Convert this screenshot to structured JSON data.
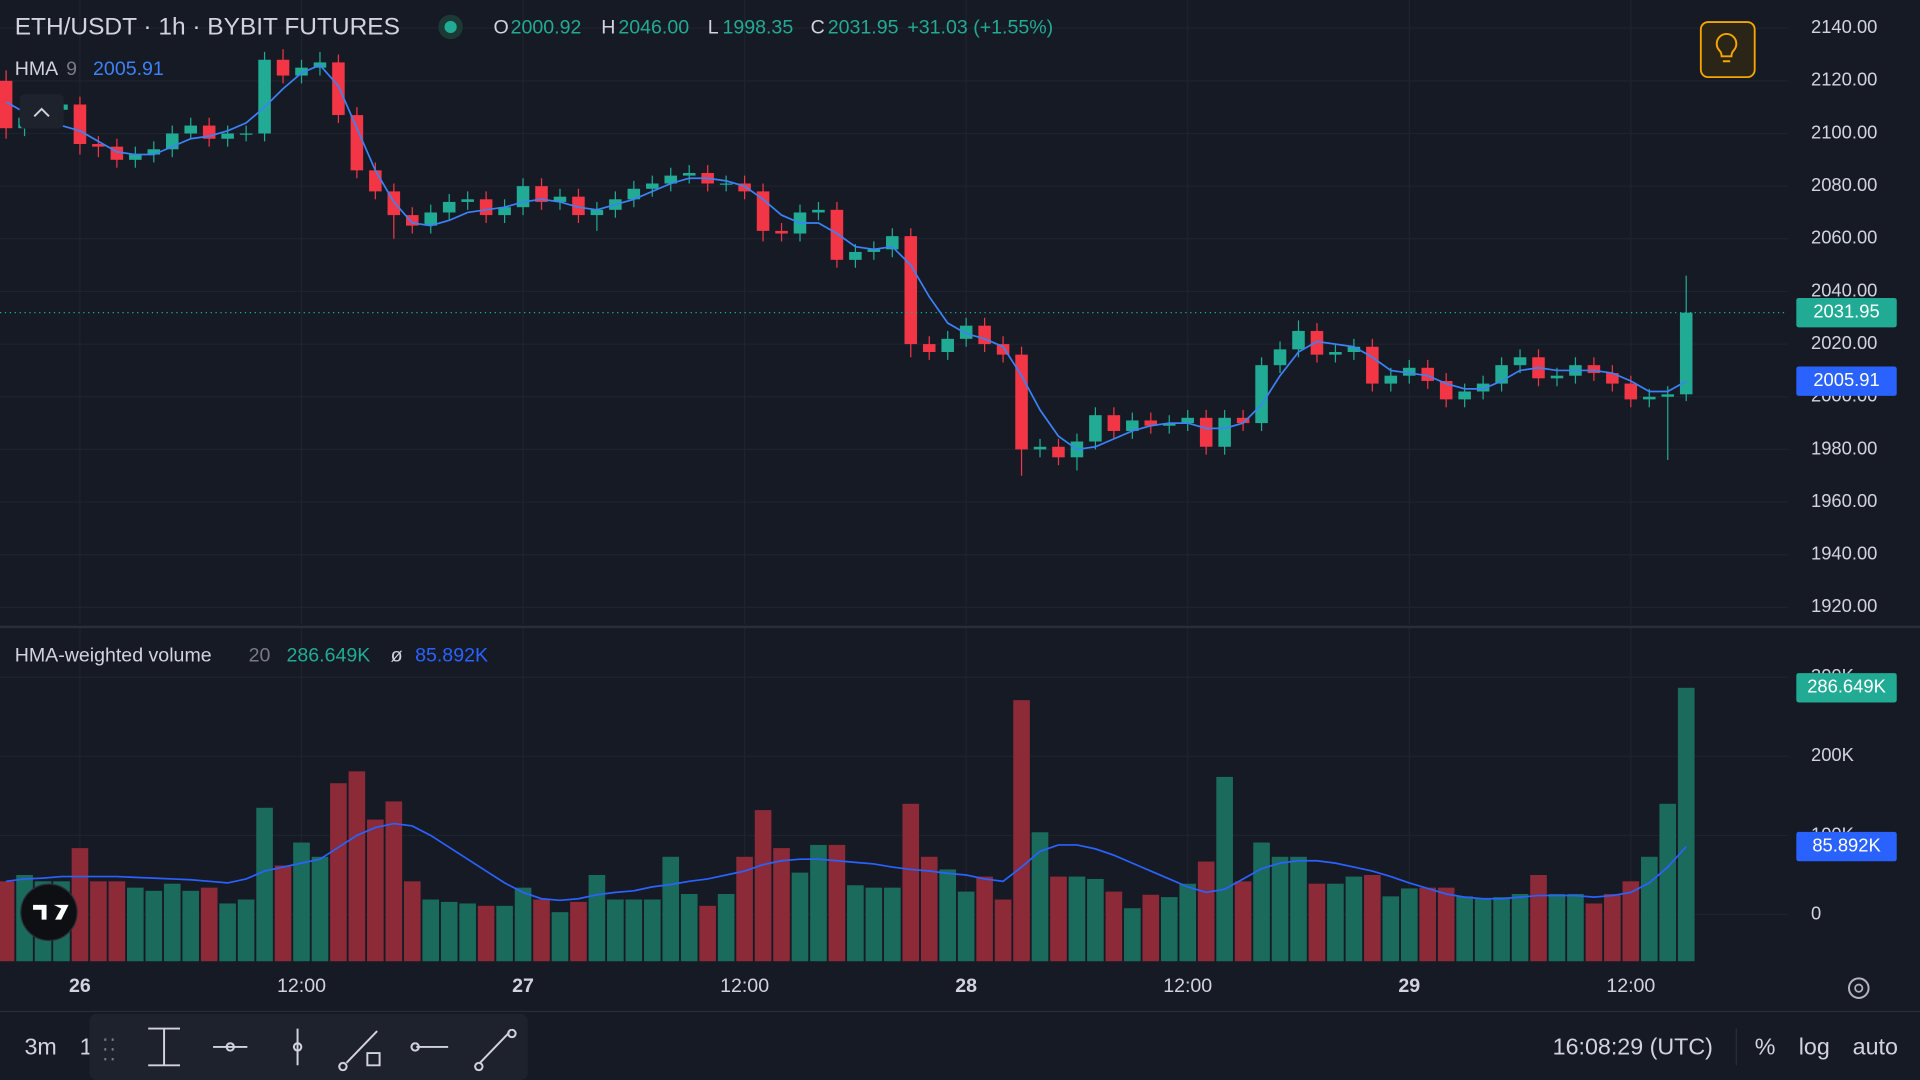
{
  "header": {
    "title": "ETH/USDT · 1h · BYBIT FUTURES"
  },
  "toolbar": {
    "interval": "3m",
    "interval2": "1",
    "clock": "16:08:29 (UTC)",
    "percent": "%",
    "log": "log",
    "auto": "auto"
  },
  "chart_data": [
    {
      "type": "candlestick",
      "ohlc_labels": [
        "O",
        "H",
        "L",
        "C"
      ],
      "last_ohlc_labels": [
        "2000.92",
        "2046.00",
        "1998.35",
        "2031.95"
      ],
      "change": "+31.03 (+1.55%)",
      "up_color": "#22ab94",
      "down_color": "#f23645",
      "ohlc": [
        [
          2120,
          2124,
          2098,
          2102
        ],
        [
          2102,
          2109,
          2099,
          2106
        ],
        [
          2106,
          2112,
          2103,
          2109
        ],
        [
          2109,
          2114,
          2106,
          2111
        ],
        [
          2111,
          2114,
          2092,
          2096
        ],
        [
          2096,
          2099,
          2091,
          2095
        ],
        [
          2095,
          2098,
          2087,
          2090
        ],
        [
          2090,
          2095,
          2087,
          2092
        ],
        [
          2092,
          2097,
          2089,
          2094
        ],
        [
          2094,
          2103,
          2091,
          2100
        ],
        [
          2100,
          2106,
          2098,
          2103
        ],
        [
          2103,
          2106,
          2095,
          2098
        ],
        [
          2098,
          2103,
          2095,
          2100
        ],
        [
          2100,
          2103,
          2097,
          2100
        ],
        [
          2100,
          2131,
          2097,
          2128
        ],
        [
          2128,
          2132,
          2119,
          2122
        ],
        [
          2122,
          2128,
          2119,
          2125
        ],
        [
          2125,
          2131,
          2122,
          2127
        ],
        [
          2127,
          2130,
          2104,
          2107
        ],
        [
          2107,
          2110,
          2083,
          2086
        ],
        [
          2086,
          2089,
          2075,
          2078
        ],
        [
          2078,
          2081,
          2060,
          2069
        ],
        [
          2069,
          2072,
          2062,
          2065
        ],
        [
          2065,
          2073,
          2062,
          2070
        ],
        [
          2070,
          2077,
          2067,
          2074
        ],
        [
          2074,
          2078,
          2071,
          2075
        ],
        [
          2075,
          2078,
          2066,
          2069
        ],
        [
          2069,
          2075,
          2066,
          2072
        ],
        [
          2072,
          2083,
          2069,
          2080
        ],
        [
          2080,
          2083,
          2071,
          2074
        ],
        [
          2074,
          2079,
          2071,
          2076
        ],
        [
          2076,
          2079,
          2066,
          2069
        ],
        [
          2069,
          2074,
          2063,
          2071
        ],
        [
          2071,
          2078,
          2068,
          2075
        ],
        [
          2075,
          2082,
          2072,
          2079
        ],
        [
          2079,
          2084,
          2076,
          2081
        ],
        [
          2081,
          2087,
          2078,
          2084
        ],
        [
          2084,
          2088,
          2081,
          2085
        ],
        [
          2085,
          2088,
          2078,
          2081
        ],
        [
          2081,
          2084,
          2078,
          2081
        ],
        [
          2081,
          2084,
          2075,
          2078
        ],
        [
          2078,
          2081,
          2059,
          2063
        ],
        [
          2063,
          2066,
          2059,
          2062
        ],
        [
          2062,
          2073,
          2059,
          2070
        ],
        [
          2070,
          2074,
          2067,
          2071
        ],
        [
          2071,
          2074,
          2049,
          2052
        ],
        [
          2052,
          2058,
          2049,
          2055
        ],
        [
          2055,
          2059,
          2052,
          2056
        ],
        [
          2056,
          2064,
          2053,
          2061
        ],
        [
          2061,
          2064,
          2015,
          2020
        ],
        [
          2020,
          2023,
          2014,
          2017
        ],
        [
          2017,
          2025,
          2014,
          2022
        ],
        [
          2022,
          2030,
          2019,
          2027
        ],
        [
          2027,
          2030,
          2017,
          2020
        ],
        [
          2020,
          2023,
          2013,
          2016
        ],
        [
          2016,
          2019,
          1970,
          1980
        ],
        [
          1980,
          1984,
          1977,
          1981
        ],
        [
          1981,
          1984,
          1974,
          1977
        ],
        [
          1977,
          1986,
          1972,
          1983
        ],
        [
          1983,
          1996,
          1980,
          1993
        ],
        [
          1993,
          1996,
          1984,
          1987
        ],
        [
          1987,
          1994,
          1984,
          1991
        ],
        [
          1991,
          1994,
          1986,
          1989
        ],
        [
          1989,
          1993,
          1986,
          1990
        ],
        [
          1990,
          1995,
          1987,
          1992
        ],
        [
          1992,
          1995,
          1978,
          1981
        ],
        [
          1981,
          1995,
          1978,
          1992
        ],
        [
          1992,
          1995,
          1987,
          1990
        ],
        [
          1990,
          2015,
          1987,
          2012
        ],
        [
          2012,
          2021,
          2009,
          2018
        ],
        [
          2018,
          2029,
          2015,
          2025
        ],
        [
          2025,
          2028,
          2013,
          2016
        ],
        [
          2016,
          2020,
          2013,
          2017
        ],
        [
          2017,
          2022,
          2014,
          2019
        ],
        [
          2019,
          2022,
          2002,
          2005
        ],
        [
          2005,
          2011,
          2002,
          2008
        ],
        [
          2008,
          2014,
          2005,
          2011
        ],
        [
          2011,
          2014,
          2003,
          2006
        ],
        [
          2006,
          2009,
          1996,
          1999
        ],
        [
          1999,
          2005,
          1996,
          2002
        ],
        [
          2002,
          2008,
          1999,
          2005
        ],
        [
          2005,
          2015,
          2002,
          2012
        ],
        [
          2012,
          2018,
          2009,
          2015
        ],
        [
          2015,
          2018,
          2004,
          2007
        ],
        [
          2007,
          2011,
          2004,
          2008
        ],
        [
          2008,
          2015,
          2005,
          2012
        ],
        [
          2012,
          2015,
          2006,
          2009
        ],
        [
          2009,
          2012,
          2002,
          2005
        ],
        [
          2005,
          2008,
          1996,
          1999
        ],
        [
          1999,
          2003,
          1996,
          2000
        ],
        [
          2000,
          2004,
          1976,
          2000.92
        ],
        [
          2000.92,
          2046,
          1998.35,
          2031.95
        ]
      ],
      "series": [
        {
          "name": "HMA",
          "length": "9",
          "color": "#3b82f6",
          "values": [
            2112,
            2108,
            2105,
            2103,
            2101,
            2097,
            2093,
            2092,
            2092,
            2095,
            2098,
            2099,
            2101,
            2104,
            2110,
            2117,
            2123,
            2126,
            2118,
            2102,
            2086,
            2074,
            2066,
            2065,
            2067,
            2070,
            2071,
            2072,
            2074,
            2075,
            2074,
            2072,
            2071,
            2073,
            2075,
            2078,
            2081,
            2083,
            2083,
            2082,
            2080,
            2075,
            2069,
            2066,
            2066,
            2062,
            2057,
            2056,
            2057,
            2050,
            2038,
            2028,
            2024,
            2022,
            2019,
            2008,
            1995,
            1985,
            1980,
            1981,
            1984,
            1987,
            1989,
            1990,
            1990,
            1988,
            1988,
            1990,
            1997,
            2008,
            2017,
            2021,
            2020,
            2019,
            2015,
            2010,
            2009,
            2008,
            2005,
            2003,
            2003,
            2006,
            2010,
            2011,
            2010,
            2010,
            2010,
            2009,
            2006,
            2002,
            2002,
            2005.91
          ]
        }
      ],
      "xlim": [
        -0.33,
        96.5
      ],
      "xticks": [
        {
          "value": 4,
          "label": "26"
        },
        {
          "value": 16,
          "label": "12:00"
        },
        {
          "value": 28,
          "label": "27"
        },
        {
          "value": 40,
          "label": "12:00"
        },
        {
          "value": 52,
          "label": "28"
        },
        {
          "value": 64,
          "label": "12:00"
        },
        {
          "value": 76,
          "label": "29"
        },
        {
          "value": 88,
          "label": "12:00"
        }
      ],
      "ylim": [
        1913.5,
        2150.7
      ],
      "yticks": [
        {
          "value": 1920,
          "label": "1920.00"
        },
        {
          "value": 1940,
          "label": "1940.00"
        },
        {
          "value": 1960,
          "label": "1960.00"
        },
        {
          "value": 1980,
          "label": "1980.00"
        },
        {
          "value": 2000,
          "label": "2000.00"
        },
        {
          "value": 2020,
          "label": "2020.00"
        },
        {
          "value": 2040,
          "label": "2040.00"
        },
        {
          "value": 2060,
          "label": "2060.00"
        },
        {
          "value": 2080,
          "label": "2080.00"
        },
        {
          "value": 2100,
          "label": "2100.00"
        },
        {
          "value": 2120,
          "label": "2120.00"
        },
        {
          "value": 2140,
          "label": "2140.00"
        }
      ],
      "grid": true
    },
    {
      "type": "bar",
      "title": "HMA-weighted volume",
      "length": "20",
      "average_symbol": "ø",
      "up_color": "#1b6b5c",
      "down_color": "#8c2a37",
      "values": [
        42000,
        50000,
        42000,
        42000,
        84000,
        42000,
        42000,
        34000,
        30000,
        39000,
        30000,
        34000,
        14000,
        19000,
        135000,
        62000,
        91000,
        73000,
        166000,
        181000,
        120000,
        143000,
        42000,
        19000,
        16000,
        14000,
        11000,
        11000,
        34000,
        19000,
        3000,
        16000,
        50000,
        19000,
        19000,
        19000,
        73000,
        26000,
        11000,
        26000,
        73000,
        132000,
        84000,
        53000,
        88000,
        88000,
        37000,
        34000,
        34000,
        140000,
        73000,
        57000,
        29000,
        48000,
        19000,
        271000,
        104000,
        48000,
        48000,
        45000,
        29000,
        8000,
        25000,
        22000,
        39000,
        67000,
        174000,
        42000,
        91000,
        73000,
        73000,
        39000,
        39000,
        48000,
        50000,
        23000,
        33000,
        34000,
        34000,
        23000,
        20000,
        22000,
        26000,
        50000,
        26000,
        26000,
        14000,
        26000,
        42000,
        73000,
        140000,
        286649
      ],
      "last_label": "286.649K",
      "series": [
        {
          "name": "MA",
          "color": "#2962ff",
          "values": [
            42000,
            45000,
            46000,
            48000,
            48000,
            48000,
            48000,
            47000,
            46000,
            45000,
            44000,
            42000,
            40000,
            45000,
            55000,
            60000,
            65000,
            70000,
            85000,
            100000,
            110000,
            115000,
            112000,
            100000,
            85000,
            70000,
            55000,
            40000,
            28000,
            20000,
            18000,
            20000,
            25000,
            28000,
            30000,
            35000,
            38000,
            42000,
            45000,
            50000,
            55000,
            63000,
            68000,
            70000,
            70000,
            68000,
            66000,
            64000,
            60000,
            57000,
            55000,
            52000,
            50000,
            45000,
            42000,
            60000,
            80000,
            88000,
            88000,
            83000,
            75000,
            65000,
            55000,
            45000,
            35000,
            28000,
            32000,
            45000,
            58000,
            65000,
            68000,
            68000,
            65000,
            60000,
            55000,
            48000,
            40000,
            33000,
            26000,
            22000,
            20000,
            20000,
            22000,
            24000,
            24000,
            24000,
            22000,
            24000,
            28000,
            40000,
            60000,
            85892
          ],
          "last_label": "85.892K"
        }
      ],
      "ylim": [
        -59000,
        362000
      ],
      "yticks": [
        {
          "value": 0,
          "label": "0"
        },
        {
          "value": 100000,
          "label": "100K"
        },
        {
          "value": 200000,
          "label": "200K"
        },
        {
          "value": 300000,
          "label": "300K"
        }
      ],
      "grid": true
    }
  ]
}
